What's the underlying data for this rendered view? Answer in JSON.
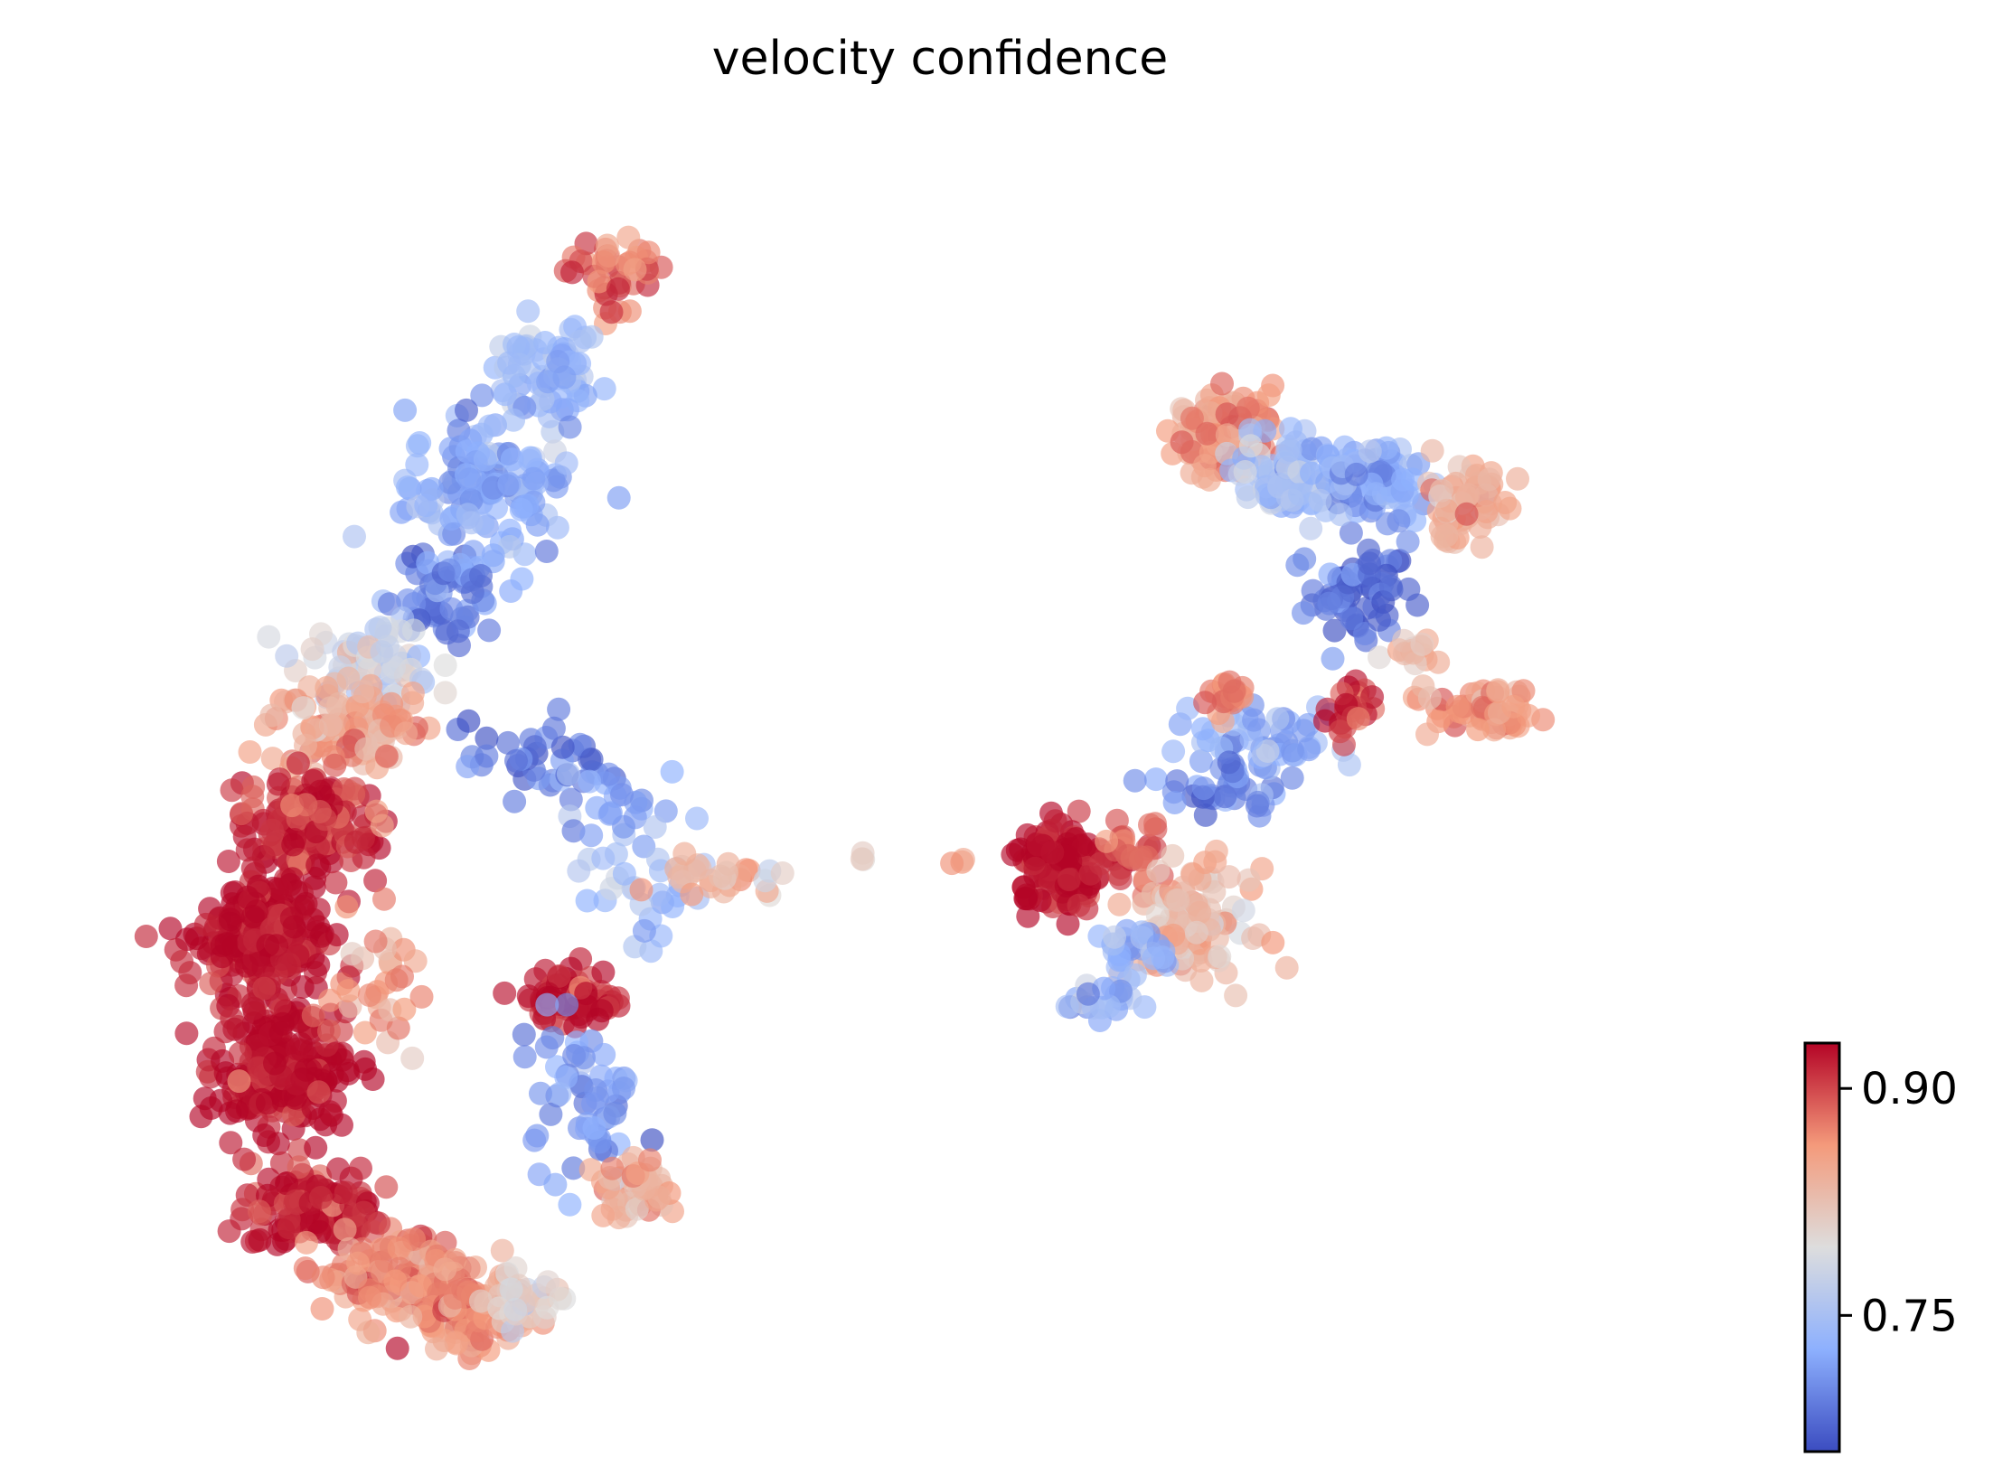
{
  "chart_data": {
    "type": "scatter",
    "title": "velocity confidence",
    "xlabel": "",
    "ylabel": "",
    "axes_visible": false,
    "grid": false,
    "colormap": "coolwarm",
    "colorbar": {
      "placement": "bottom-right",
      "range": [
        0.66,
        0.93
      ],
      "ticks": [
        0.75,
        0.9
      ],
      "tick_labels": [
        "0.75",
        "0.90"
      ],
      "colors": [
        "#3b4cc0",
        "#8db0fe",
        "#dddddd",
        "#f49a7b",
        "#b40426"
      ]
    },
    "xlim": [
      0,
      100
    ],
    "ylim": [
      0,
      100
    ],
    "clusters": [
      {
        "name": "",
        "x": 30.5,
        "y": 91.0,
        "sx": 2.4,
        "sy": 2.8,
        "n": 40,
        "value": 0.885
      },
      {
        "name": "",
        "x": 26.5,
        "y": 82.5,
        "sx": 3.0,
        "sy": 3.4,
        "n": 70,
        "value": 0.74
      },
      {
        "name": "",
        "x": 23.0,
        "y": 73.5,
        "sx": 4.0,
        "sy": 4.5,
        "n": 140,
        "value": 0.725
      },
      {
        "name": "",
        "x": 20.0,
        "y": 64.5,
        "sx": 3.4,
        "sy": 3.0,
        "n": 60,
        "value": 0.7
      },
      {
        "name": "",
        "x": 15.5,
        "y": 59.5,
        "sx": 3.4,
        "sy": 2.8,
        "n": 70,
        "value": 0.78
      },
      {
        "name": "",
        "x": 14.5,
        "y": 54.0,
        "sx": 4.0,
        "sy": 3.0,
        "n": 110,
        "value": 0.85
      },
      {
        "name": "",
        "x": 12.0,
        "y": 46.0,
        "sx": 3.4,
        "sy": 3.5,
        "n": 150,
        "value": 0.91
      },
      {
        "name": "",
        "x": 9.5,
        "y": 36.5,
        "sx": 3.2,
        "sy": 4.5,
        "n": 240,
        "value": 0.925
      },
      {
        "name": "",
        "x": 10.5,
        "y": 26.0,
        "sx": 3.2,
        "sy": 4.0,
        "n": 220,
        "value": 0.925
      },
      {
        "name": "",
        "x": 12.5,
        "y": 15.0,
        "sx": 3.4,
        "sy": 3.0,
        "n": 130,
        "value": 0.92
      },
      {
        "name": "",
        "x": 17.5,
        "y": 9.5,
        "sx": 3.8,
        "sy": 2.8,
        "n": 140,
        "value": 0.87
      },
      {
        "name": "",
        "x": 21.5,
        "y": 6.5,
        "sx": 3.2,
        "sy": 2.5,
        "n": 110,
        "value": 0.86
      },
      {
        "name": "",
        "x": 25.5,
        "y": 7.5,
        "sx": 2.2,
        "sy": 2.0,
        "n": 30,
        "value": 0.8
      },
      {
        "name": "",
        "x": 16.0,
        "y": 33.0,
        "sx": 2.5,
        "sy": 6.0,
        "n": 30,
        "value": 0.85
      },
      {
        "name": "",
        "x": 26.5,
        "y": 51.0,
        "sx": 4.0,
        "sy": 3.0,
        "n": 40,
        "value": 0.69
      },
      {
        "name": "",
        "x": 31.0,
        "y": 47.5,
        "sx": 3.5,
        "sy": 3.0,
        "n": 20,
        "value": 0.72
      },
      {
        "name": "",
        "x": 32.5,
        "y": 41.0,
        "sx": 3.5,
        "sy": 4.0,
        "n": 30,
        "value": 0.75
      },
      {
        "name": "",
        "x": 28.0,
        "y": 32.0,
        "sx": 2.2,
        "sy": 2.0,
        "n": 70,
        "value": 0.925
      },
      {
        "name": "",
        "x": 28.5,
        "y": 24.0,
        "sx": 3.0,
        "sy": 5.0,
        "n": 55,
        "value": 0.71
      },
      {
        "name": "",
        "x": 32.0,
        "y": 16.5,
        "sx": 2.0,
        "sy": 2.0,
        "n": 50,
        "value": 0.84
      },
      {
        "name": "",
        "x": 36.5,
        "y": 41.5,
        "sx": 2.5,
        "sy": 1.5,
        "n": 25,
        "value": 0.84
      },
      {
        "name": "",
        "x": 40.0,
        "y": 42.0,
        "sx": 0.8,
        "sy": 0.5,
        "n": 3,
        "value": 0.79
      },
      {
        "name": "",
        "x": 45.5,
        "y": 43.5,
        "sx": 1.2,
        "sy": 0.5,
        "n": 3,
        "value": 0.78
      },
      {
        "name": "",
        "x": 51.5,
        "y": 43.0,
        "sx": 0.8,
        "sy": 0.5,
        "n": 3,
        "value": 0.86
      },
      {
        "name": "",
        "x": 57.5,
        "y": 42.5,
        "sx": 2.4,
        "sy": 2.8,
        "n": 130,
        "value": 0.93
      },
      {
        "name": "",
        "x": 62.0,
        "y": 43.5,
        "sx": 1.6,
        "sy": 2.2,
        "n": 30,
        "value": 0.89
      },
      {
        "name": "",
        "x": 65.5,
        "y": 38.0,
        "sx": 3.0,
        "sy": 3.5,
        "n": 110,
        "value": 0.83
      },
      {
        "name": "",
        "x": 62.0,
        "y": 36.0,
        "sx": 2.2,
        "sy": 1.8,
        "n": 30,
        "value": 0.73
      },
      {
        "name": "",
        "x": 67.5,
        "y": 49.0,
        "sx": 3.0,
        "sy": 2.5,
        "n": 40,
        "value": 0.7
      },
      {
        "name": "",
        "x": 70.0,
        "y": 53.0,
        "sx": 3.5,
        "sy": 2.5,
        "n": 50,
        "value": 0.73
      },
      {
        "name": "",
        "x": 67.5,
        "y": 56.5,
        "sx": 1.3,
        "sy": 1.3,
        "n": 20,
        "value": 0.87
      },
      {
        "name": "",
        "x": 75.0,
        "y": 55.5,
        "sx": 1.2,
        "sy": 1.8,
        "n": 30,
        "value": 0.91
      },
      {
        "name": "",
        "x": 83.0,
        "y": 55.0,
        "sx": 2.8,
        "sy": 1.6,
        "n": 60,
        "value": 0.86
      },
      {
        "name": "",
        "x": 75.5,
        "y": 65.0,
        "sx": 2.5,
        "sy": 3.0,
        "n": 60,
        "value": 0.68
      },
      {
        "name": "",
        "x": 67.5,
        "y": 78.0,
        "sx": 2.5,
        "sy": 2.5,
        "n": 120,
        "value": 0.86
      },
      {
        "name": "",
        "x": 71.5,
        "y": 74.5,
        "sx": 2.8,
        "sy": 3.0,
        "n": 90,
        "value": 0.75
      },
      {
        "name": "",
        "x": 76.5,
        "y": 74.0,
        "sx": 2.6,
        "sy": 2.6,
        "n": 80,
        "value": 0.72
      },
      {
        "name": "",
        "x": 82.0,
        "y": 72.0,
        "sx": 2.2,
        "sy": 2.5,
        "n": 70,
        "value": 0.84
      },
      {
        "name": "",
        "x": 78.5,
        "y": 60.0,
        "sx": 1.5,
        "sy": 1.2,
        "n": 15,
        "value": 0.82
      },
      {
        "name": "",
        "x": 59.5,
        "y": 31.5,
        "sx": 2.0,
        "sy": 1.2,
        "n": 20,
        "value": 0.74
      }
    ]
  }
}
